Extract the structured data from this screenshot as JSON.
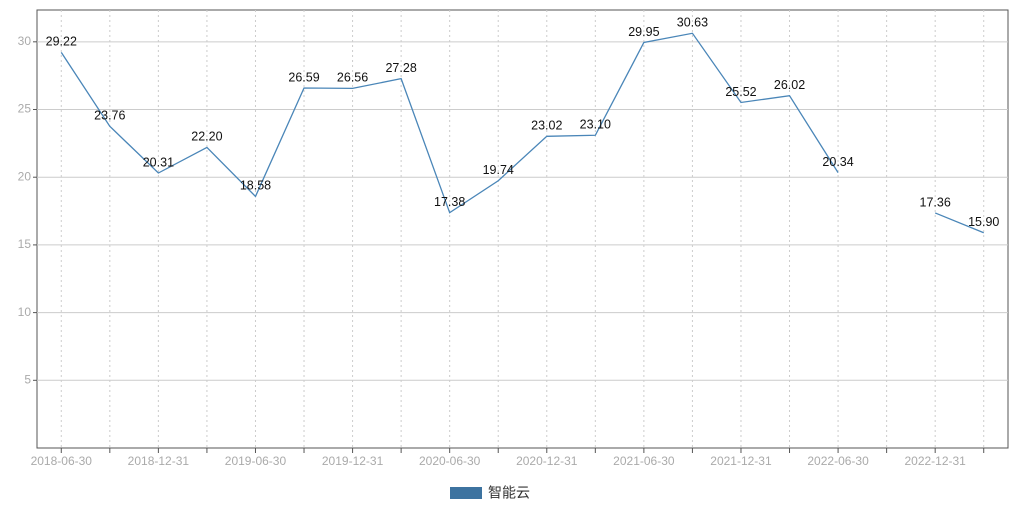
{
  "chart_data": {
    "type": "line",
    "categories": [
      "2018-06-30",
      null,
      "2018-12-31",
      null,
      "2019-06-30",
      null,
      "2019-12-31",
      null,
      "2020-06-30",
      null,
      "2020-12-31",
      null,
      "2021-06-30",
      null,
      "2021-12-31",
      null,
      "2022-06-30",
      null,
      "2022-12-31",
      null
    ],
    "series": [
      {
        "name": "智能云",
        "color": "#4a86b8",
        "legend_color": "#3d73a0",
        "values": [
          29.22,
          23.76,
          20.31,
          22.2,
          18.58,
          26.59,
          26.56,
          27.28,
          17.38,
          19.74,
          23.02,
          23.1,
          29.95,
          30.63,
          25.52,
          26.02,
          20.34,
          null,
          17.36,
          15.9
        ],
        "value_labels": [
          "29.22",
          "23.76",
          "20.31",
          "22.20",
          "18.58",
          "26.59",
          "26.56",
          "27.28",
          "17.38",
          "19.74",
          "23.02",
          "23.10",
          "29.95",
          "30.63",
          "25.52",
          "26.02",
          "20.34",
          null,
          "17.36",
          "15.90"
        ]
      }
    ],
    "ylim": [
      0,
      32.35
    ],
    "yticks": [
      5,
      10,
      15,
      20,
      25,
      30
    ],
    "grid": true,
    "legend": "bottom"
  }
}
